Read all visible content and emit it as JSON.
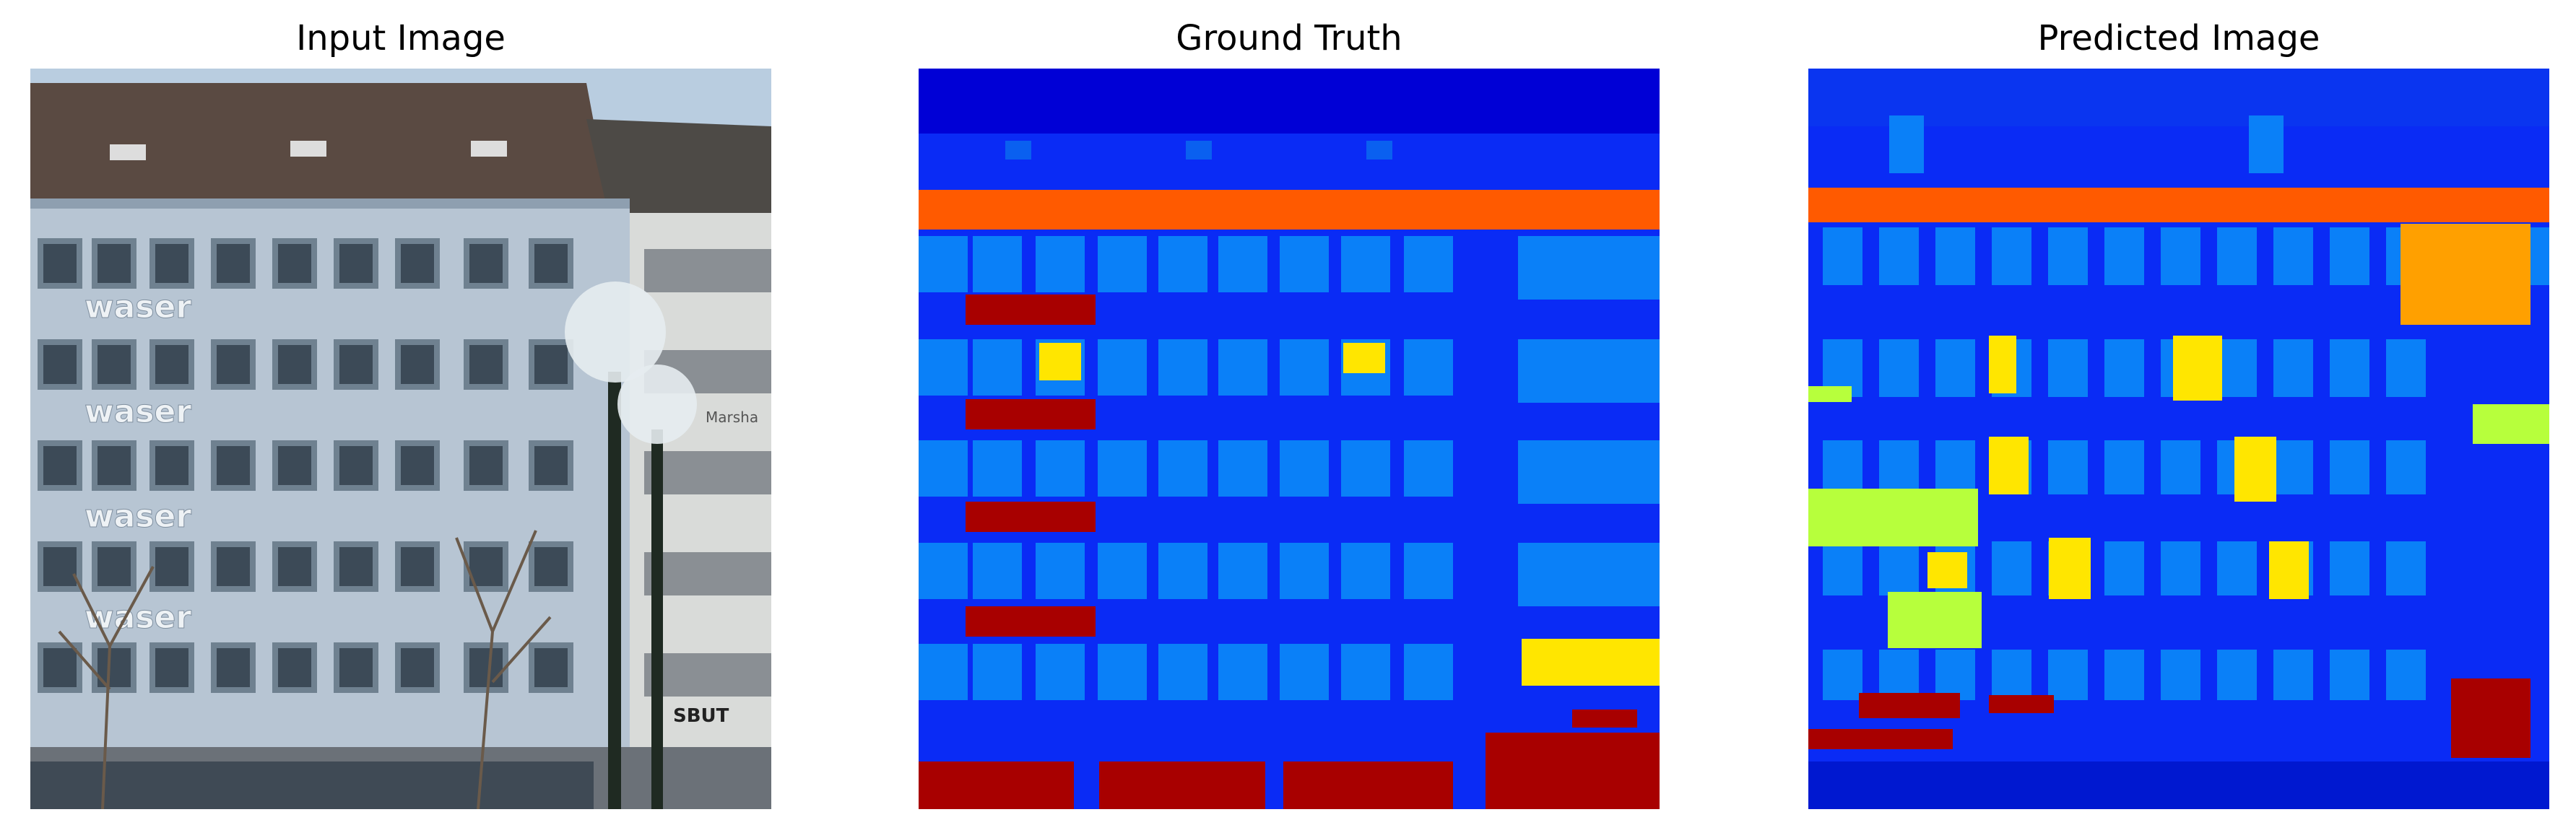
{
  "panels": [
    {
      "title": "Input Image"
    },
    {
      "title": "Ground Truth"
    },
    {
      "title": "Predicted Image"
    }
  ],
  "input_image": {
    "facade_signs": [
      "waser",
      "waser",
      "waser",
      "waser"
    ],
    "right_building_sign": "Marsha",
    "shop_sign": "SBUT"
  },
  "colors": {
    "background_class": "#0a2bf5",
    "sky_class": "#0000d6",
    "cornice_class": "#ff5a00",
    "window_class": "#0a80f8",
    "sign_class": "#a80000",
    "balcony_class": "#ffe600",
    "predicted_shop_class": "#ffa000",
    "predicted_lime_class": "#b7ff3c"
  }
}
